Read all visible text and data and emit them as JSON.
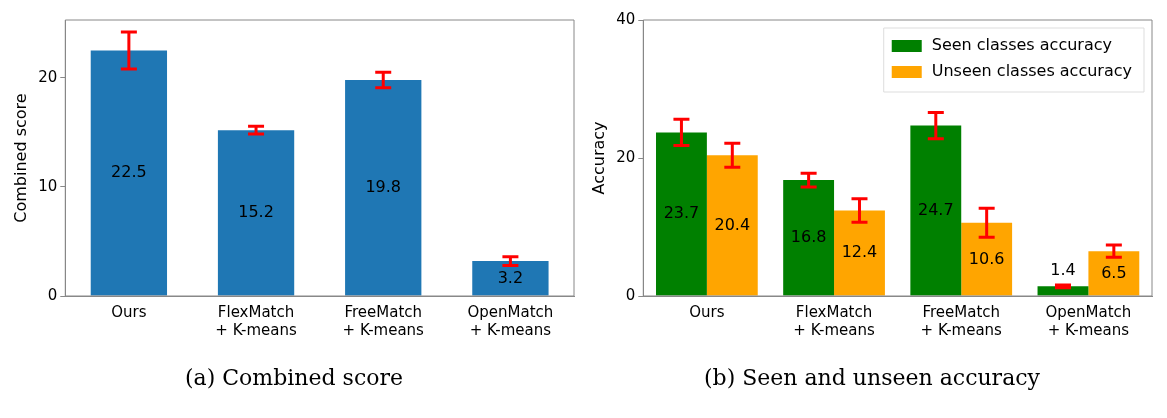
{
  "chart_data": [
    {
      "type": "bar",
      "ylabel": "Combined score",
      "categories": [
        "Ours",
        "FlexMatch\n+ K-means",
        "FreeMatch\n+ K-means",
        "OpenMatch\n+ K-means"
      ],
      "series": [
        {
          "color": "#1f77b4",
          "values": [
            22.5,
            15.2,
            19.8,
            3.2
          ],
          "errors": [
            1.7,
            0.35,
            0.7,
            0.4
          ]
        }
      ],
      "ylim": [
        0,
        25.3
      ],
      "yticks": [
        0,
        10,
        20
      ],
      "grid": false,
      "legend": false,
      "data_labels": true,
      "annotations": [
        "(a) Combined score"
      ]
    },
    {
      "type": "bar",
      "ylabel": "Accuracy",
      "categories": [
        "Ours",
        "FlexMatch\n+ K-means",
        "FreeMatch\n+ K-means",
        "OpenMatch\n+ K-means"
      ],
      "series": [
        {
          "name": "Seen classes accuracy",
          "color": "#008000",
          "values": [
            23.7,
            16.8,
            24.7,
            1.4
          ],
          "errors": [
            1.9,
            1.0,
            1.9,
            0.2
          ]
        },
        {
          "name": "Unseen classes accuracy",
          "color": "#ffa500",
          "values": [
            20.4,
            12.4,
            10.6,
            6.5
          ],
          "errors": [
            1.75,
            1.7,
            2.1,
            0.9
          ]
        }
      ],
      "ylim": [
        0,
        40
      ],
      "yticks": [
        0,
        20,
        40
      ],
      "grid": false,
      "legend": "top right",
      "data_labels": true,
      "annotations": [
        "(b) Seen and unseen accuracy"
      ]
    }
  ]
}
